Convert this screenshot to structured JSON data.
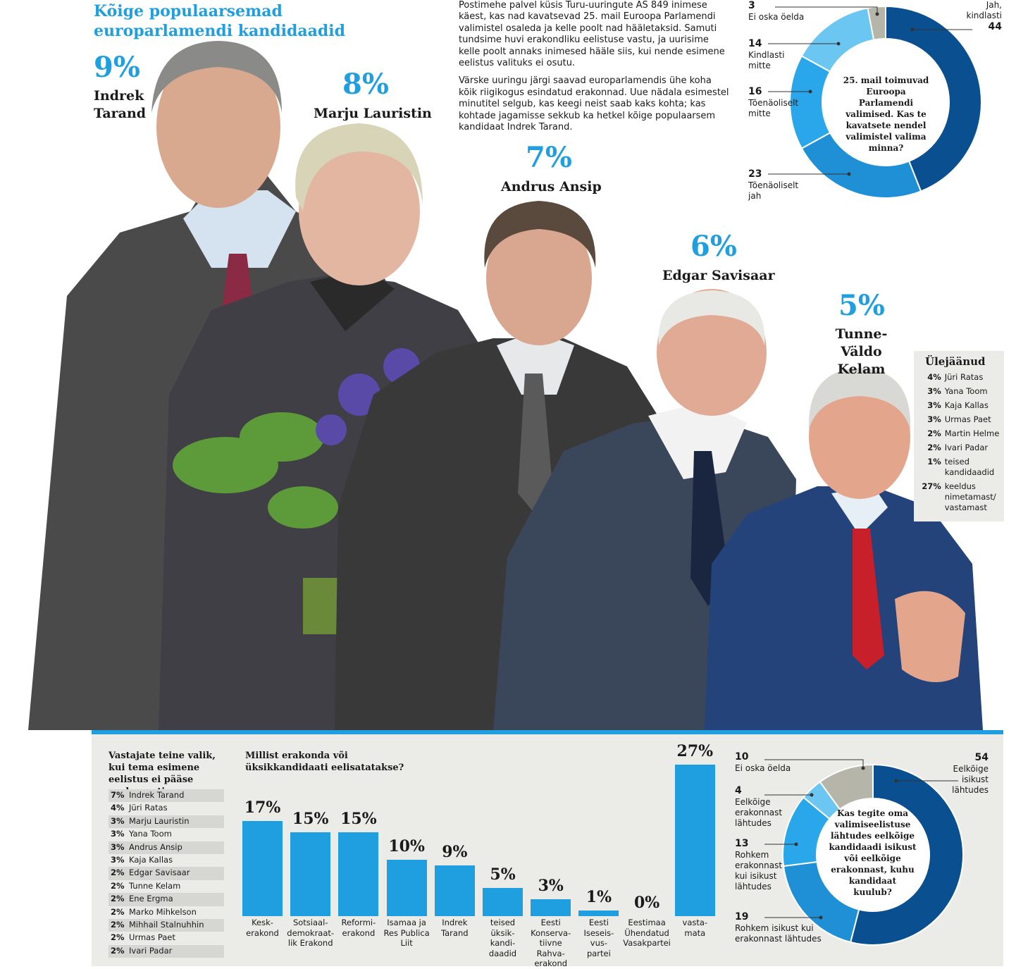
{
  "title": "Kõige populaarsemad europarlamendi kandidaadid",
  "candidates": [
    {
      "pct": "9%",
      "name_line1": "Indrek",
      "name_line2": "Tarand"
    },
    {
      "pct": "8%",
      "name_line1": "Marju Lauristin",
      "name_line2": ""
    },
    {
      "pct": "7%",
      "name_line1": "Andrus Ansip",
      "name_line2": ""
    },
    {
      "pct": "6%",
      "name_line1": "Edgar Savisaar",
      "name_line2": ""
    },
    {
      "pct": "5%",
      "name_line1": "Tunne-Väldo",
      "name_line2": "Kelam"
    }
  ],
  "intro": {
    "p1": "Postimehe palvel küsis Turu-uuringute AS 849 inimese käest, kas nad kavatsevad 25. mail Euroopa Parlamendi valimistel osaleda ja kelle poolt nad hääletaksid. Samuti tundsime huvi erakondliku eelistuse vastu, ja uurisime kelle poolt annaks inimesed hääle siis, kui nende esimene eelistus valituks ei osutu.",
    "p2": "Värske uuringu järgi saavad europarlamendis ühe koha kõik riigikogus esindatud erakonnad. Uue nädala esimestel minutitel selgub, kas keegi neist saab kaks kohta; kas kohtade jagamisse sekkub ka hetkel kõige populaarsem kandidaat Indrek Tarand."
  },
  "rest": {
    "heading": "Ülejäänud",
    "items": [
      {
        "pct": "4%",
        "name": "Jüri Ratas"
      },
      {
        "pct": "3%",
        "name": "Yana Toom"
      },
      {
        "pct": "3%",
        "name": "Kaja Kallas"
      },
      {
        "pct": "3%",
        "name": "Urmas Paet"
      },
      {
        "pct": "2%",
        "name": "Martin Helme"
      },
      {
        "pct": "2%",
        "name": "Ivari Padar"
      },
      {
        "pct": "1%",
        "name": "teised kandidaadid"
      },
      {
        "pct": "27%",
        "name": "keeldus nimetamast/ vastamast"
      }
    ]
  },
  "second_choice": {
    "heading": "Vastajate teine valik, kui tema esimene eelistus ei pääse parlamenti",
    "items": [
      {
        "pct": "7%",
        "name": "Indrek Tarand"
      },
      {
        "pct": "4%",
        "name": "Jüri Ratas"
      },
      {
        "pct": "3%",
        "name": "Marju Lauristin"
      },
      {
        "pct": "3%",
        "name": "Yana Toom"
      },
      {
        "pct": "3%",
        "name": "Andrus Ansip"
      },
      {
        "pct": "3%",
        "name": "Kaja Kallas"
      },
      {
        "pct": "2%",
        "name": "Edgar Savisaar"
      },
      {
        "pct": "2%",
        "name": "Tunne Kelam"
      },
      {
        "pct": "2%",
        "name": "Ene Ergma"
      },
      {
        "pct": "2%",
        "name": "Marko Mihkelson"
      },
      {
        "pct": "2%",
        "name": "Mihhail Stalnuhhin"
      },
      {
        "pct": "2%",
        "name": "Urmas Paet"
      },
      {
        "pct": "2%",
        "name": "Ivari Padar"
      }
    ]
  },
  "colors": {
    "accent": "#1f9fe0",
    "dark": "#0a4f8f",
    "mid": "#1f8fd6",
    "light": "#6cc6f2",
    "grey": "#b5b5aa"
  },
  "chart_data": [
    {
      "type": "pie",
      "question": "25. mail toimuvad Euroopa Parlamendi valimised. Kas te kavatsete nendel valimistel valima minna?",
      "slices": [
        {
          "label": "Jah, kindlasti",
          "value": 44,
          "color": "#0a4f8f"
        },
        {
          "label": "Tõenäoliselt jah",
          "value": 23,
          "color": "#1f8fd6"
        },
        {
          "label": "Tõenäoliselt mitte",
          "value": 16,
          "color": "#2aa7ea"
        },
        {
          "label": "Kindlasti mitte",
          "value": 14,
          "color": "#6cc6f2"
        },
        {
          "label": "Ei oska öelda",
          "value": 3,
          "color": "#b5b5aa"
        }
      ]
    },
    {
      "type": "bar",
      "title": "Millist erakonda või üksikkandidaati eelisatatakse?",
      "categories": [
        "Keskerakond",
        "Sotsiaaldemokraatlik Erakond",
        "Reformierakond",
        "Isamaa ja Res Publica Liit",
        "Indrek Tarand",
        "teised üksikkandidaadid",
        "Eesti Konservatiivne Rahvaerakond",
        "Eesti Iseseisvuspartei",
        "Eestimaa Ühendatud Vasakpartei",
        "vastamata"
      ],
      "category_lines": [
        [
          "Kesk-",
          "erakond"
        ],
        [
          "Sotsiaal-",
          "demokraat-",
          "lik Erakond"
        ],
        [
          "Reformi-",
          "erakond"
        ],
        [
          "Isamaa ja",
          "Res Publica",
          "Liit"
        ],
        [
          "Indrek",
          "Tarand"
        ],
        [
          "teised",
          "üksik-",
          "kandi-",
          "daadid"
        ],
        [
          "Eesti",
          "Konserva-",
          "tiivne Rahva-",
          "erakond"
        ],
        [
          "Eesti",
          "Iseseis-",
          "vus-",
          "partei"
        ],
        [
          "Eestimaa",
          "Ühendatud",
          "Vasakpartei"
        ],
        [
          "vasta-",
          "mata"
        ]
      ],
      "values": [
        17,
        15,
        15,
        10,
        9,
        5,
        3,
        1,
        0,
        27
      ],
      "value_labels": [
        "17%",
        "15%",
        "15%",
        "10%",
        "9%",
        "5%",
        "3%",
        "1%",
        "0%",
        "27%"
      ],
      "ylim": [
        0,
        27
      ]
    },
    {
      "type": "pie",
      "question": "Kas tegite oma valimiseelistuse lähtudes eelkõige kandidaadi isikust või eelkõige erakonnast, kuhu kandidaat kuulub?",
      "slices": [
        {
          "label": "Eelkõige isikust lähtudes",
          "value": 54,
          "color": "#0a4f8f"
        },
        {
          "label": "Rohkem isikust kui erakonnast lähtudes",
          "value": 19,
          "color": "#1f8fd6"
        },
        {
          "label": "Rohkem erakonnast kui isikust lähtudes",
          "value": 13,
          "color": "#2aa7ea"
        },
        {
          "label": "Eelkõige erakonnast lähtudes",
          "value": 4,
          "color": "#6cc6f2"
        },
        {
          "label": "Ei oska öelda",
          "value": 10,
          "color": "#b5b5aa"
        }
      ]
    }
  ]
}
